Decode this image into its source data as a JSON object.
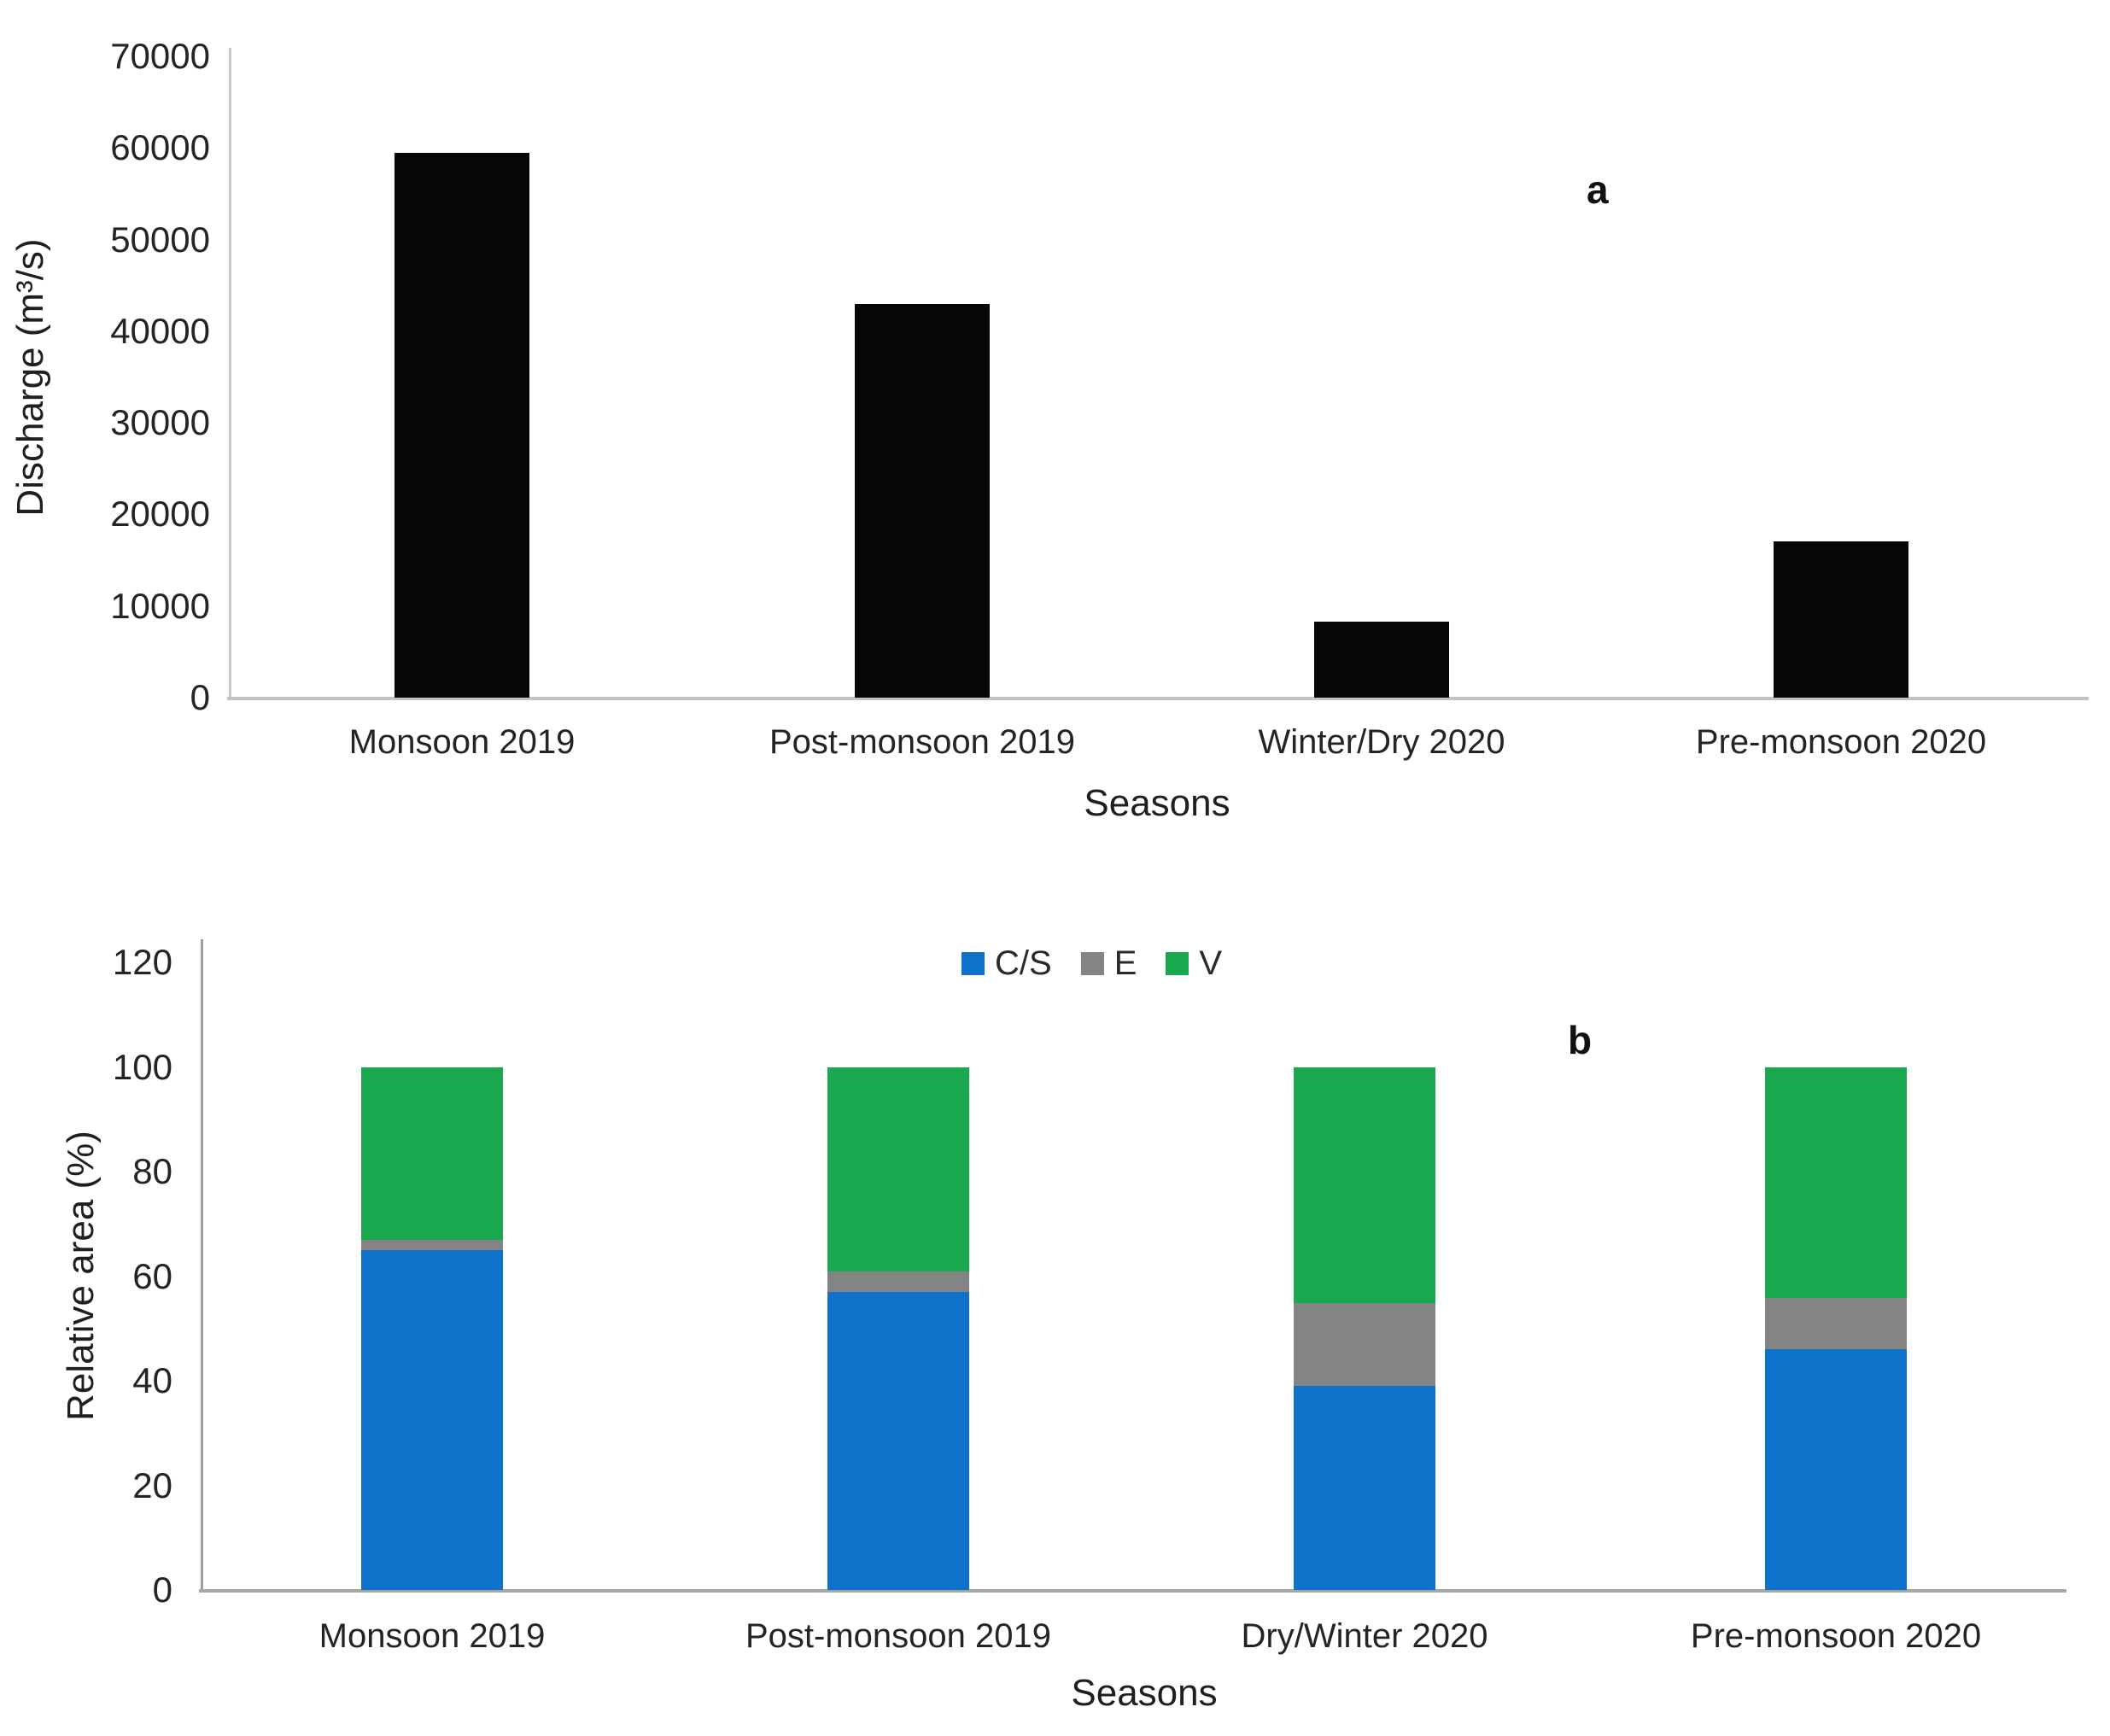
{
  "figure": {
    "background": "#ffffff",
    "panel_a_letter": "a",
    "panel_b_letter": "b"
  },
  "chart_data": [
    {
      "type": "bar",
      "panel": "a",
      "annotation": "a",
      "categories": [
        "Monsoon 2019",
        "Post-monsoon 2019",
        "Winter/Dry 2020",
        "Pre-monsoon 2020"
      ],
      "values": [
        59500,
        43000,
        8300,
        17100
      ],
      "bar_color": "#060606",
      "xlabel": "Seasons",
      "ylabel": "Discharge (m³/s)",
      "ylim": [
        0,
        70000
      ],
      "ytick_step": 10000,
      "ytick_labels": [
        "0",
        "10000",
        "20000",
        "30000",
        "40000",
        "50000",
        "60000",
        "70000"
      ],
      "grid": false,
      "legend_position": "none"
    },
    {
      "type": "stacked-bar",
      "panel": "b",
      "annotation": "b",
      "categories": [
        "Monsoon 2019",
        "Post-monsoon 2019",
        "Dry/Winter 2020",
        "Pre-monsoon 2020"
      ],
      "series": [
        {
          "name": "C/S",
          "color": "#0d72c8",
          "values": [
            65,
            57,
            39,
            46
          ]
        },
        {
          "name": "E",
          "color": "#848484",
          "values": [
            2,
            4,
            16,
            10
          ]
        },
        {
          "name": "V",
          "color": "#19a84d",
          "values": [
            33,
            39,
            45,
            44
          ]
        }
      ],
      "xlabel": "Seasons",
      "ylabel": "Relative area (%)",
      "ylim": [
        0,
        120
      ],
      "ytick_step": 20,
      "ytick_labels": [
        "0",
        "20",
        "40",
        "60",
        "80",
        "100",
        "120"
      ],
      "grid": false,
      "legend_position": "top-center"
    }
  ]
}
